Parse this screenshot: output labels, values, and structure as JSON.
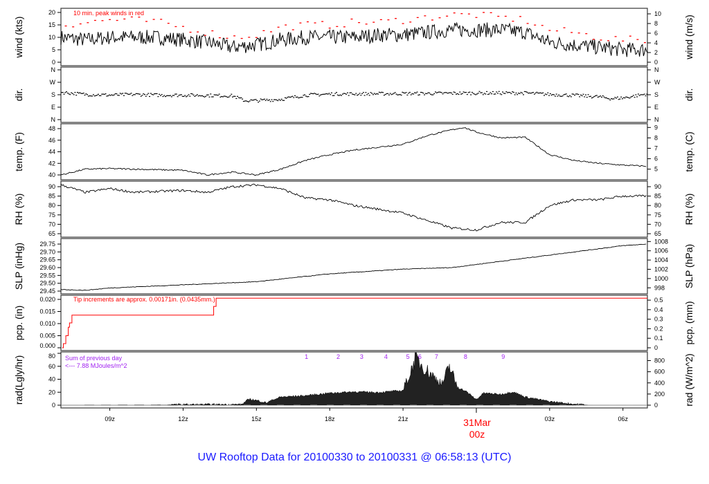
{
  "title": "UW Rooftop Data for 20100330  to  20100331 @ 06:58:13  (UTC)",
  "chart_data": [
    {
      "type": "line",
      "id": "wind",
      "ylabel": "wind (kts)",
      "ylabel_right": "wind (m/s)",
      "ylim": [
        0,
        20
      ],
      "yticks": [
        0,
        5,
        10,
        15,
        20
      ],
      "yticks_right": [
        "0",
        "2",
        "4",
        "6",
        "8",
        "10"
      ],
      "right_range": [
        0,
        10
      ],
      "annotation": "10 min. peak winds in red",
      "series": [
        {
          "name": "wind",
          "color": "#000000",
          "x": [
            7,
            8,
            9,
            10,
            11,
            12,
            13,
            14,
            15,
            16,
            17,
            18,
            19,
            20,
            21,
            22,
            23,
            24,
            25,
            26,
            27,
            28,
            29,
            30,
            31
          ],
          "y": [
            10,
            9,
            10,
            10,
            10,
            9,
            8,
            6,
            7,
            9,
            10,
            10,
            10,
            11,
            11,
            12,
            13,
            13,
            13,
            12,
            8,
            7,
            6,
            5,
            5
          ]
        },
        {
          "name": "peak",
          "color": "#ff0000",
          "x": [
            7,
            8,
            9,
            10,
            11,
            12,
            13,
            14,
            15,
            16,
            17,
            18,
            19,
            20,
            21,
            22,
            23,
            24,
            25,
            26,
            27,
            28,
            29,
            30,
            31
          ],
          "y": [
            15,
            16,
            17,
            17,
            16,
            14,
            12,
            10,
            11,
            14,
            15,
            15,
            16,
            16,
            17,
            18,
            19,
            19,
            18,
            17,
            13,
            12,
            10,
            9,
            9
          ]
        }
      ]
    },
    {
      "type": "scatter",
      "id": "dir",
      "ylabel": "dir.",
      "ylabel_right": "dir.",
      "ylim": [
        0,
        360
      ],
      "yticks_labels": [
        "N",
        "E",
        "S",
        "W",
        "N"
      ],
      "yticks": [
        0,
        90,
        180,
        270,
        360
      ],
      "series": [
        {
          "name": "direction",
          "color": "#000000",
          "x": [
            7,
            8,
            9,
            10,
            11,
            12,
            13,
            14,
            14.5,
            15,
            16,
            17,
            18,
            20,
            22,
            24,
            26,
            27,
            28,
            29,
            29.5,
            30,
            31
          ],
          "y": [
            200,
            185,
            180,
            185,
            180,
            180,
            178,
            175,
            140,
            140,
            150,
            180,
            188,
            190,
            192,
            195,
            195,
            185,
            178,
            168,
            155,
            160,
            190
          ]
        }
      ]
    },
    {
      "type": "line",
      "id": "temp",
      "ylabel": "temp. (F)",
      "ylabel_right": "temp. (C)",
      "ylim": [
        39.5,
        48.5
      ],
      "yticks": [
        40,
        42,
        44,
        46,
        48
      ],
      "yticks_right": [
        "5",
        "6",
        "7",
        "8",
        "9"
      ],
      "series": [
        {
          "name": "temperature",
          "color": "#000000",
          "x": [
            7,
            8,
            9,
            12,
            13,
            14,
            15,
            16,
            17,
            18,
            19,
            20,
            21,
            22,
            23,
            23.5,
            24,
            25,
            26,
            27,
            28,
            29,
            30,
            31
          ],
          "y": [
            40,
            41,
            41.1,
            40.8,
            40,
            40.5,
            40,
            41,
            42.5,
            43.5,
            44.3,
            44.8,
            45.3,
            46.8,
            47.8,
            48.2,
            47.4,
            46.4,
            46.5,
            43.5,
            42.5,
            42,
            41.7,
            41.5
          ]
        }
      ]
    },
    {
      "type": "line",
      "id": "rh",
      "ylabel": "RH (%)",
      "ylabel_right": "RH (%)",
      "ylim": [
        64,
        92
      ],
      "yticks": [
        65,
        70,
        75,
        80,
        85,
        90
      ],
      "yticks_right": [
        "65",
        "70",
        "75",
        "80",
        "85",
        "90"
      ],
      "series": [
        {
          "name": "relative humidity",
          "color": "#000000",
          "x": [
            7,
            8,
            9,
            10,
            12,
            13,
            14,
            15,
            16,
            17,
            18,
            19,
            20,
            21,
            22,
            23,
            24,
            25,
            26,
            27,
            28,
            29,
            30,
            31
          ],
          "y": [
            91,
            87,
            89,
            87,
            88,
            87,
            90,
            91,
            89,
            84,
            83,
            80,
            78,
            76,
            72,
            68,
            67,
            71,
            71,
            80,
            83,
            83,
            85,
            85
          ]
        }
      ]
    },
    {
      "type": "line",
      "id": "slp",
      "ylabel": "SLP (inHg)",
      "ylabel_right": "SLP (hPa)",
      "ylim": [
        29.445,
        29.765
      ],
      "yticks": [
        29.45,
        29.5,
        29.55,
        29.6,
        29.65,
        29.7,
        29.75
      ],
      "yticks_labels": [
        "29.45",
        "29.50",
        "29.55",
        "29.60",
        "29.65",
        "29.70",
        "29.75"
      ],
      "yticks_right": [
        "998",
        "1000",
        "1002",
        "1004",
        "1006",
        "1008"
      ],
      "series": [
        {
          "name": "sea level pressure",
          "color": "#000000",
          "x": [
            7,
            8,
            9,
            12,
            15,
            18,
            21,
            23,
            25,
            28,
            30,
            31
          ],
          "y": [
            29.46,
            29.455,
            29.47,
            29.49,
            29.51,
            29.56,
            29.59,
            29.6,
            29.64,
            29.7,
            29.74,
            29.75
          ]
        }
      ]
    },
    {
      "type": "line",
      "id": "pcp",
      "ylabel": "pcp. (in)",
      "ylabel_right": "pcp. (mm)",
      "ylim": [
        0,
        0.0205
      ],
      "yticks": [
        0,
        0.005,
        0.01,
        0.015,
        0.02
      ],
      "yticks_labels": [
        "0.000",
        "0.005",
        "0.010",
        "0.015",
        "0.020"
      ],
      "yticks_right": [
        "0",
        "0.1",
        "0.2",
        "0.3",
        "0.4",
        "0.5"
      ],
      "annotation": "Tip increments are approx. 0.00171in. (0.0435mm.)",
      "series": [
        {
          "name": "precipitation",
          "color": "#ff0000",
          "x": [
            7.05,
            7.1,
            7.2,
            7.3,
            7.35,
            7.45,
            13.15,
            13.25,
            13.35,
            31
          ],
          "y": [
            0,
            0.0017,
            0.005,
            0.0085,
            0.0103,
            0.0135,
            0.0135,
            0.0171,
            0.0205,
            0.0205
          ]
        }
      ]
    },
    {
      "type": "area",
      "id": "rad",
      "ylabel": "rad(Lgly/hr)",
      "ylabel_right": "rad (W/m^2)",
      "ylim": [
        0,
        80
      ],
      "yticks": [
        0,
        20,
        40,
        60,
        80
      ],
      "yticks_right": [
        "0",
        "200",
        "400",
        "600",
        "800"
      ],
      "annotation": [
        "Sum of previous day",
        "<--- 7.88 MJoules/m^2"
      ],
      "hour_markers": {
        "labels": [
          "1",
          "2",
          "3",
          "4",
          "5",
          "6",
          "7",
          "8",
          "9"
        ],
        "x": [
          17.05,
          18.35,
          19.31,
          20.3,
          21.2,
          21.69,
          22.37,
          23.56,
          25.1
        ]
      },
      "series": [
        {
          "name": "radiation",
          "color": "#222222",
          "x": [
            7,
            14.4,
            14.7,
            15.1,
            15.4,
            15.7,
            16,
            17,
            18,
            19,
            20,
            21,
            21.3,
            21.5,
            21.8,
            22.2,
            22.6,
            22.9,
            23.2,
            23.6,
            24,
            24.3,
            25,
            25.5,
            26,
            27,
            28,
            28.6
          ],
          "y": [
            0,
            0.5,
            9,
            6,
            3,
            8,
            12,
            14,
            18,
            20,
            19,
            22,
            45,
            68,
            55,
            42,
            30,
            55,
            28,
            20,
            8,
            18,
            16,
            20,
            12,
            5,
            1,
            0
          ]
        }
      ]
    }
  ],
  "xaxis": {
    "ticks": [
      "09z",
      "12z",
      "15z",
      "18z",
      "21z",
      "00z",
      "03z",
      "06z"
    ],
    "tick_hours": [
      9,
      12,
      15,
      18,
      21,
      24,
      27,
      30
    ],
    "date_label": "31Mar",
    "xlim": [
      7,
      31
    ]
  }
}
